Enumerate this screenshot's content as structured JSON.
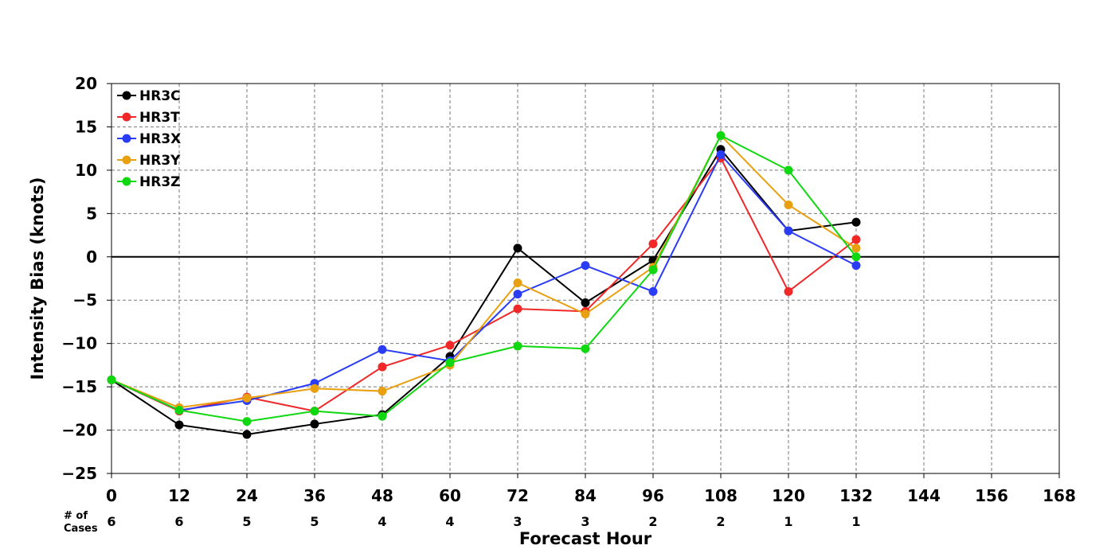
{
  "chart_data": {
    "type": "line",
    "xlabel": "Forecast Hour",
    "ylabel": "Intensity Bias (knots)",
    "xlim": [
      0,
      168
    ],
    "ylim": [
      -25,
      20
    ],
    "x_ticks": [
      0,
      12,
      24,
      36,
      48,
      60,
      72,
      84,
      96,
      108,
      120,
      132,
      144,
      156,
      168
    ],
    "y_ticks": [
      20,
      15,
      10,
      5,
      0,
      -5,
      -10,
      -15,
      -20,
      -25
    ],
    "y_tick_labels": [
      "20",
      "15",
      "10",
      "5",
      "0",
      "−5",
      "−10",
      "−15",
      "−20",
      "−25"
    ],
    "grid": true,
    "zero_line": true,
    "legend_position": "top-left",
    "cases_header": [
      "# of",
      "Cases"
    ],
    "cases": [
      {
        "x": 0,
        "n": "6"
      },
      {
        "x": 12,
        "n": "6"
      },
      {
        "x": 24,
        "n": "5"
      },
      {
        "x": 36,
        "n": "5"
      },
      {
        "x": 48,
        "n": "4"
      },
      {
        "x": 60,
        "n": "4"
      },
      {
        "x": 72,
        "n": "3"
      },
      {
        "x": 84,
        "n": "3"
      },
      {
        "x": 96,
        "n": "2"
      },
      {
        "x": 108,
        "n": "2"
      },
      {
        "x": 120,
        "n": "1"
      },
      {
        "x": 132,
        "n": "1"
      }
    ],
    "x": [
      0,
      12,
      24,
      36,
      48,
      60,
      72,
      84,
      96,
      108,
      120,
      132
    ],
    "series": [
      {
        "name": "HR3C",
        "color": "#000000",
        "values": [
          -14.2,
          -19.4,
          -20.5,
          -19.3,
          -18.2,
          -11.5,
          1.0,
          -5.3,
          -0.4,
          12.4,
          3.0,
          4.0
        ]
      },
      {
        "name": "HR3T",
        "color": "#f02828",
        "values": [
          -14.2,
          -17.8,
          -16.2,
          -17.8,
          -12.7,
          -10.2,
          -6.0,
          -6.3,
          1.5,
          11.4,
          -4.0,
          2.0
        ]
      },
      {
        "name": "HR3X",
        "color": "#2a3cf5",
        "values": [
          -14.2,
          -17.7,
          -16.6,
          -14.6,
          -10.7,
          -12.0,
          -4.3,
          -1.0,
          -4.0,
          11.8,
          3.0,
          -1.0
        ]
      },
      {
        "name": "HR3Y",
        "color": "#e8a010",
        "values": [
          -14.2,
          -17.4,
          -16.3,
          -15.2,
          -15.5,
          -12.5,
          -3.0,
          -6.6,
          -1.2,
          14.0,
          6.0,
          1.0
        ]
      },
      {
        "name": "HR3Z",
        "color": "#10d810",
        "values": [
          -14.2,
          -17.7,
          -19.0,
          -17.8,
          -18.4,
          -12.2,
          -10.3,
          -10.6,
          -1.5,
          14.0,
          10.0,
          0.0
        ]
      }
    ]
  }
}
